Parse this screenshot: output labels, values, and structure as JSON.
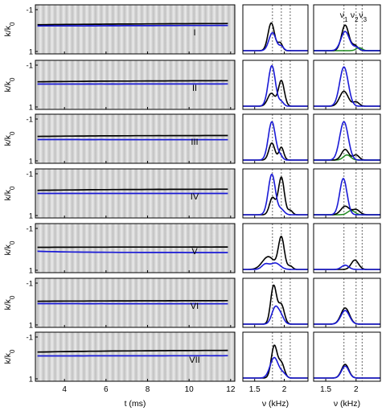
{
  "chart_data": {
    "type": "line",
    "rows": [
      "I",
      "II",
      "III",
      "IV",
      "V",
      "VI",
      "VII"
    ],
    "colors": {
      "black_series": "#000000",
      "blue_series": "#1a1ad6",
      "green_series": "#1f8a1f",
      "dashed_lines": "#666666"
    },
    "left_panel": {
      "type": "line",
      "background": "grayscale density map",
      "xlabel": "t (ms)",
      "ylabel": "k/k",
      "ylabel_subscript": "0",
      "xlim": [
        2.6,
        12.2
      ],
      "xticks": [
        4,
        6,
        8,
        10,
        12
      ],
      "ylim": [
        -1,
        1
      ],
      "yticks": [
        "-1",
        "1"
      ],
      "x_fit": [
        2.7,
        12.1
      ],
      "osc_freq_khz": 1.8,
      "rows": [
        {
          "label": "I",
          "black": {
            "amp": 0.3,
            "decay": 0.1,
            "offset": -0.3,
            "tstart": 2.7
          },
          "blue": {
            "amp": 0.35,
            "decay": 0.05,
            "offset": -0.22,
            "tstart": 2.7
          }
        },
        {
          "label": "II",
          "black": {
            "amp": 0.45,
            "decay": 0.18,
            "offset": -0.2,
            "tstart": 2.7
          },
          "blue": {
            "amp": 0.45,
            "decay": 0.08,
            "offset": -0.05,
            "tstart": 2.7
          }
        },
        {
          "label": "III",
          "black": {
            "amp": 0.5,
            "decay": 0.25,
            "offset": -0.15,
            "tstart": 2.7
          },
          "blue": {
            "amp": 0.5,
            "decay": 0.1,
            "offset": 0.05,
            "tstart": 2.7
          }
        },
        {
          "label": "IV",
          "black": {
            "amp": 0.55,
            "decay": 0.22,
            "offset": -0.2,
            "tstart": 2.7
          },
          "blue": {
            "amp": 0.5,
            "decay": 0.12,
            "offset": 0.0,
            "tstart": 2.7
          }
        },
        {
          "label": "V",
          "black": {
            "amp": 0.55,
            "decay": 0.35,
            "offset": -0.05,
            "tstart": 2.7
          },
          "blue": {
            "amp": 0.5,
            "decay": 0.5,
            "offset": 0.2,
            "tstart": 2.7
          }
        },
        {
          "label": "VI",
          "black": {
            "amp": 0.55,
            "decay": 0.22,
            "offset": -0.1,
            "tstart": 2.7
          },
          "blue": {
            "amp": 0.45,
            "decay": 0.1,
            "offset": 0.05,
            "tstart": 2.7
          }
        },
        {
          "label": "VII",
          "black": {
            "amp": 0.6,
            "decay": 0.2,
            "offset": -0.3,
            "tstart": 2.7
          },
          "blue": {
            "amp": 0.5,
            "decay": 0.12,
            "offset": -0.05,
            "tstart": 2.7
          }
        }
      ]
    },
    "middle_panel": {
      "type": "line",
      "xlabel": "ν (kHz)",
      "xlim": [
        1.3,
        2.4
      ],
      "xticks": [
        1.5,
        2
      ],
      "ylim": [
        0,
        1
      ],
      "dashed_x": [
        1.8,
        1.95,
        2.1
      ],
      "rows": [
        {
          "label": "I",
          "black": [
            [
              1.78,
              0.65,
              0.055
            ],
            [
              1.93,
              0.18,
              0.04
            ]
          ],
          "blue": [
            [
              1.8,
              0.42,
              0.06
            ],
            [
              1.95,
              0.1,
              0.04
            ]
          ]
        },
        {
          "label": "II",
          "black": [
            [
              1.78,
              0.3,
              0.06
            ],
            [
              1.95,
              0.6,
              0.05
            ]
          ],
          "blue": [
            [
              1.79,
              0.95,
              0.06
            ],
            [
              1.95,
              0.1,
              0.04
            ]
          ]
        },
        {
          "label": "III",
          "black": [
            [
              1.79,
              0.4,
              0.05
            ],
            [
              1.95,
              0.3,
              0.04
            ]
          ],
          "blue": [
            [
              1.79,
              0.9,
              0.06
            ],
            [
              1.93,
              0.1,
              0.04
            ]
          ]
        },
        {
          "label": "IV",
          "black": [
            [
              1.8,
              0.4,
              0.05
            ],
            [
              1.95,
              0.88,
              0.05
            ],
            [
              2.1,
              0.1,
              0.04
            ]
          ],
          "blue": [
            [
              1.79,
              0.95,
              0.06
            ],
            [
              1.95,
              0.12,
              0.05
            ]
          ]
        },
        {
          "label": "V",
          "black": [
            [
              1.73,
              0.3,
              0.1
            ],
            [
              1.95,
              0.75,
              0.05
            ],
            [
              2.1,
              0.08,
              0.04
            ]
          ],
          "blue": [
            [
              1.68,
              0.12,
              0.06
            ],
            [
              1.85,
              0.15,
              0.08
            ]
          ]
        },
        {
          "label": "VI",
          "black": [
            [
              1.82,
              0.9,
              0.05
            ],
            [
              1.95,
              0.45,
              0.05
            ]
          ],
          "blue": [
            [
              1.85,
              0.4,
              0.06
            ],
            [
              1.95,
              0.15,
              0.05
            ]
          ]
        },
        {
          "label": "VII",
          "black": [
            [
              1.83,
              0.75,
              0.05
            ],
            [
              1.95,
              0.35,
              0.05
            ]
          ],
          "blue": [
            [
              1.83,
              0.48,
              0.07
            ],
            [
              1.98,
              0.1,
              0.05
            ]
          ]
        }
      ]
    },
    "right_panel": {
      "type": "line",
      "xlabel": "ν (kHz)",
      "xlim": [
        1.3,
        2.4
      ],
      "xticks": [
        1.5,
        2
      ],
      "ylim": [
        0,
        1
      ],
      "dashed_x": [
        1.8,
        2.0,
        2.1
      ],
      "peak_labels": [
        "ν",
        "ν",
        "ν"
      ],
      "peak_label_subscripts": [
        "1",
        "2",
        "3"
      ],
      "rows": [
        {
          "label": "I",
          "black": [
            [
              1.82,
              0.6,
              0.06
            ],
            [
              1.98,
              0.12,
              0.05
            ]
          ],
          "blue": [
            [
              1.82,
              0.45,
              0.07
            ],
            [
              2.0,
              0.08,
              0.05
            ]
          ],
          "green": [
            [
              2.05,
              0.07,
              0.05
            ]
          ]
        },
        {
          "label": "II",
          "black": [
            [
              1.8,
              0.35,
              0.07
            ],
            [
              2.0,
              0.1,
              0.05
            ]
          ],
          "blue": [
            [
              1.8,
              0.92,
              0.07
            ]
          ],
          "green": []
        },
        {
          "label": "III",
          "black": [
            [
              1.82,
              0.25,
              0.06
            ],
            [
              2.0,
              0.12,
              0.05
            ]
          ],
          "blue": [
            [
              1.8,
              0.9,
              0.07
            ]
          ],
          "green": [
            [
              1.85,
              0.12,
              0.06
            ]
          ]
        },
        {
          "label": "IV",
          "black": [
            [
              1.82,
              0.2,
              0.07
            ],
            [
              2.0,
              0.12,
              0.06
            ]
          ],
          "blue": [
            [
              1.79,
              0.85,
              0.06
            ]
          ],
          "green": [
            [
              1.92,
              0.1,
              0.06
            ]
          ]
        },
        {
          "label": "V",
          "black": [
            [
              1.98,
              0.22,
              0.06
            ]
          ],
          "blue": [
            [
              1.82,
              0.1,
              0.06
            ]
          ],
          "green": []
        },
        {
          "label": "VI",
          "black": [
            [
              1.82,
              0.38,
              0.07
            ]
          ],
          "blue": [
            [
              1.82,
              0.32,
              0.07
            ]
          ],
          "green": []
        },
        {
          "label": "VII",
          "black": [
            [
              1.82,
              0.32,
              0.06
            ]
          ],
          "blue": [
            [
              1.82,
              0.28,
              0.06
            ]
          ],
          "green": []
        }
      ]
    }
  }
}
